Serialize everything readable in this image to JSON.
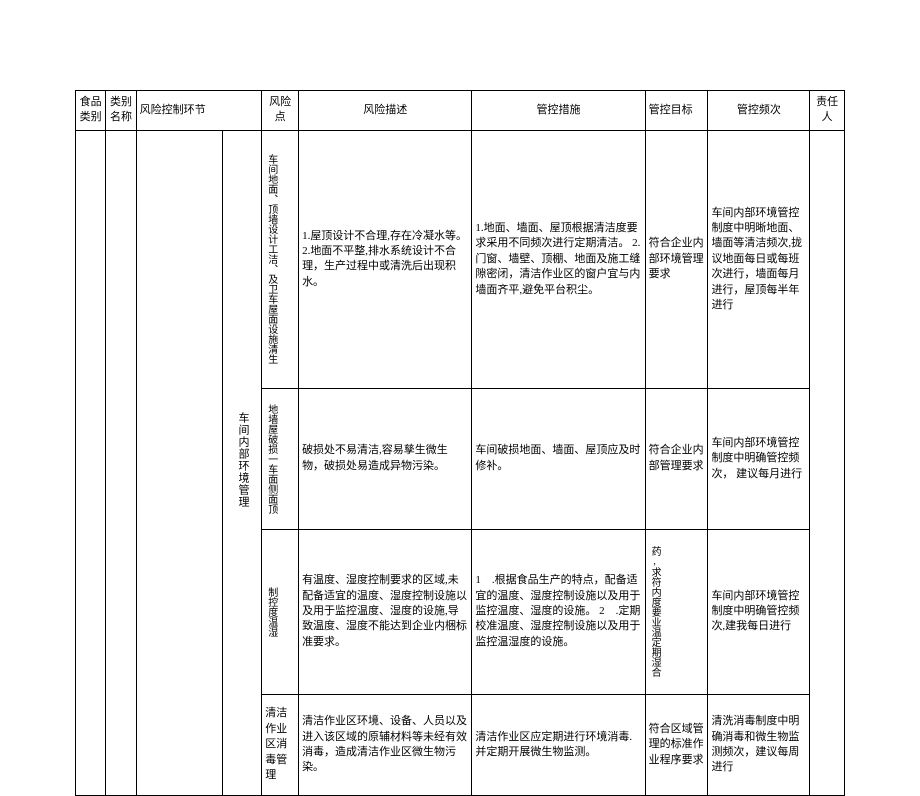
{
  "header": {
    "food_category": "食品类别",
    "category_name": "类别名称",
    "risk_link": "风险控制环节",
    "risk_point": "风险点",
    "risk_desc": "风险描述",
    "measure": "管控措施",
    "goal": "管控目标",
    "freq": "管控频次",
    "resp": "责任人"
  },
  "sublink": "车间内部环境管理",
  "rows": [
    {
      "point": "车间地面、顶墙设计工洁、及卫车屋面设施清生",
      "desc": "1.屋顶设计不合理,存在冷凝水等。\n2.地面不平整,排水系统设计不合理，生产过程中或清洗后出现积水。",
      "measure": "1.地面、墙面、屋顶根据清洁度要求采用不同频次进行定期清洁。\n2.门窗、墙壁、顶棚、地面及施工缝隙密闭，清洁作业区的窗户宜与内墙面齐平,避免平台积尘。",
      "goal": "符合企业内部环境管理要求",
      "freq": "车间内部环境管控制度中明晰地面、墙面等清洁频次,拢议地面每日或每班次进行，墙面每月进行，屋顶每半年进行"
    },
    {
      "point": "地墙屋破损一车面侧面顶",
      "desc": "破损处不易清洁,容易孳生微生物，破损处易造成异物污染。",
      "measure": "车间破损地面、墙面、屋顶应及时修补。",
      "goal": "符合企业内部管理要求",
      "freq": "车间内部环境管控制度中明确管控频次， 建议每月进行"
    },
    {
      "point": "制控度温湿",
      "desc": "有温度、湿度控制要求的区域,未配备适宜的温度、湿度控制设施以及用于监控温度、湿度的设施,导致温度、湿度不能达到企业内梱标准要求。",
      "measure": "1　.根据食品生产的特点，配备适宜的温度、湿度控制设施以及用于监控温度、湿度的设施。\n2　.定期校准温度、湿度控制设施以及用于监控温湿度的设施。",
      "goal": "药,求符内度要业温定期湿合",
      "freq": "车间内部环境管控制度中明确管控频次,建我每日进行"
    },
    {
      "point": "清洁作业区消毒管理",
      "desc": "清洁作业区环境、设备、人员以及进入该区域的原辅材料等未经有效消毒，造成清洁作业区微生物污染。",
      "measure": "清洁作业区应定期进行环境消毒.并定期开展微生物监测。",
      "goal": "符合区域管理的标准作业程序要求",
      "freq": "清洗消毒制度中明确消毒和微生物监测频次，建议每周进行"
    }
  ]
}
